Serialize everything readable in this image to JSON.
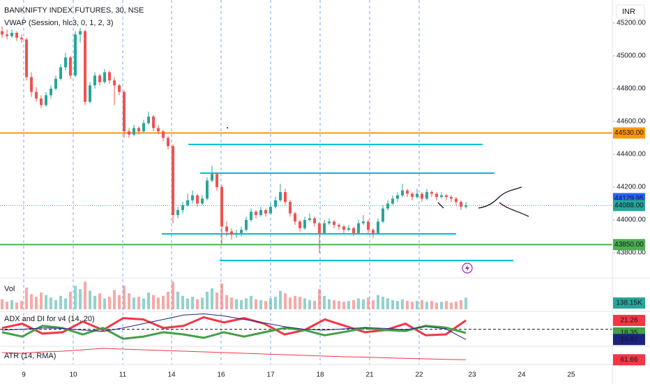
{
  "chart_data": {
    "type": "candlestick",
    "title": "BANKNIFTY INDEX FUTURES, 30, NSE",
    "indicator": "VWAP (Session, hlc3, 0, 1, 2, 3)",
    "currency": "INR",
    "up_color": "#26a69a",
    "down_color": "#ef5350",
    "ylim": [
      43660,
      45340
    ],
    "yticks": [
      {
        "value": 43800,
        "label": "43800.00"
      },
      {
        "value": 44000,
        "label": "44000.00"
      },
      {
        "value": 44200,
        "label": "44200.00"
      },
      {
        "value": 44400,
        "label": "44400.00"
      },
      {
        "value": 44600,
        "label": "44600.00"
      },
      {
        "value": 44800,
        "label": "44800.00"
      },
      {
        "value": 45000,
        "label": "45000.00"
      },
      {
        "value": 45200,
        "label": "45200.00"
      }
    ],
    "x_labels": [
      "9",
      "10",
      "11",
      "14",
      "16",
      "17",
      "18",
      "21",
      "22",
      "23",
      "24",
      "25"
    ],
    "ohlc": [
      [
        45150,
        45180,
        45110,
        45130
      ],
      [
        45130,
        45160,
        45100,
        45120
      ],
      [
        45120,
        45160,
        45110,
        45140
      ],
      [
        45140,
        45150,
        45090,
        45110
      ],
      [
        45110,
        45130,
        45080,
        45100
      ],
      [
        45100,
        45110,
        44850,
        44870
      ],
      [
        44870,
        44900,
        44750,
        44780
      ],
      [
        44780,
        44810,
        44720,
        44740
      ],
      [
        44740,
        44760,
        44680,
        44700
      ],
      [
        44700,
        44780,
        44690,
        44760
      ],
      [
        44760,
        44820,
        44740,
        44800
      ],
      [
        44800,
        44880,
        44790,
        44860
      ],
      [
        44860,
        44950,
        44850,
        44930
      ],
      [
        44930,
        45020,
        44910,
        44990
      ],
      [
        44990,
        45000,
        44860,
        44880
      ],
      [
        44880,
        45150,
        44870,
        45130
      ],
      [
        45130,
        45170,
        45080,
        45150
      ],
      [
        45150,
        45160,
        44700,
        44720
      ],
      [
        44720,
        44840,
        44710,
        44820
      ],
      [
        44820,
        44900,
        44800,
        44880
      ],
      [
        44880,
        44890,
        44820,
        44840
      ],
      [
        44840,
        44920,
        44830,
        44900
      ],
      [
        44900,
        44910,
        44830,
        44850
      ],
      [
        44850,
        44870,
        44700,
        44820
      ],
      [
        44820,
        44830,
        44760,
        44780
      ],
      [
        44780,
        44790,
        44500,
        44540
      ],
      [
        44540,
        44560,
        44500,
        44520
      ],
      [
        44520,
        44580,
        44510,
        44560
      ],
      [
        44560,
        44570,
        44520,
        44540
      ],
      [
        44540,
        44610,
        44530,
        44590
      ],
      [
        44590,
        44660,
        44580,
        44630
      ],
      [
        44630,
        44640,
        44540,
        44560
      ],
      [
        44560,
        44580,
        44520,
        44540
      ],
      [
        44540,
        44550,
        44480,
        44500
      ],
      [
        44500,
        44510,
        44430,
        44450
      ],
      [
        44450,
        44460,
        43980,
        44030
      ],
      [
        44030,
        44080,
        44010,
        44060
      ],
      [
        44060,
        44110,
        44040,
        44090
      ],
      [
        44090,
        44160,
        44080,
        44120
      ],
      [
        44120,
        44180,
        44100,
        44150
      ],
      [
        44150,
        44160,
        44080,
        44100
      ],
      [
        44100,
        44150,
        44090,
        44130
      ],
      [
        44130,
        44260,
        44120,
        44240
      ],
      [
        44240,
        44330,
        44230,
        44280
      ],
      [
        44280,
        44290,
        44180,
        44200
      ],
      [
        44200,
        44210,
        43850,
        43960
      ],
      [
        43960,
        43990,
        43900,
        43930
      ],
      [
        43930,
        43950,
        43880,
        43910
      ],
      [
        43910,
        43940,
        43890,
        43920
      ],
      [
        43920,
        43960,
        43900,
        43940
      ],
      [
        43940,
        44020,
        43930,
        44000
      ],
      [
        44000,
        44070,
        43990,
        44050
      ],
      [
        44050,
        44060,
        44010,
        44030
      ],
      [
        44030,
        44080,
        44020,
        44060
      ],
      [
        44060,
        44070,
        44020,
        44040
      ],
      [
        44040,
        44100,
        44030,
        44080
      ],
      [
        44080,
        44140,
        44070,
        44120
      ],
      [
        44120,
        44220,
        44110,
        44170
      ],
      [
        44170,
        44190,
        44090,
        44110
      ],
      [
        44110,
        44120,
        44020,
        44040
      ],
      [
        44040,
        44050,
        43970,
        43990
      ],
      [
        43990,
        44000,
        43930,
        43950
      ],
      [
        43950,
        44020,
        43940,
        44000
      ],
      [
        44000,
        44040,
        43990,
        44010
      ],
      [
        44010,
        44020,
        43960,
        43980
      ],
      [
        43980,
        43990,
        43800,
        43920
      ],
      [
        43920,
        44000,
        43910,
        43980
      ],
      [
        43980,
        44010,
        43970,
        43990
      ],
      [
        43990,
        44000,
        43950,
        43970
      ],
      [
        43970,
        43980,
        43940,
        43960
      ],
      [
        43960,
        43970,
        43920,
        43940
      ],
      [
        43940,
        43970,
        43930,
        43950
      ],
      [
        43950,
        43960,
        43900,
        43920
      ],
      [
        43920,
        44000,
        43910,
        43980
      ],
      [
        43980,
        44030,
        43970,
        43990
      ],
      [
        43990,
        44000,
        43920,
        43940
      ],
      [
        43940,
        43950,
        43890,
        43920
      ],
      [
        43920,
        44010,
        43910,
        43990
      ],
      [
        43990,
        44090,
        43980,
        44070
      ],
      [
        44070,
        44120,
        44060,
        44100
      ],
      [
        44100,
        44150,
        44090,
        44130
      ],
      [
        44130,
        44170,
        44110,
        44150
      ],
      [
        44150,
        44220,
        44140,
        44180
      ],
      [
        44180,
        44190,
        44140,
        44160
      ],
      [
        44160,
        44170,
        44120,
        44140
      ],
      [
        44140,
        44190,
        44130,
        44160
      ],
      [
        44160,
        44170,
        44110,
        44130
      ],
      [
        44130,
        44190,
        44120,
        44170
      ],
      [
        44170,
        44180,
        44140,
        44160
      ],
      [
        44160,
        44170,
        44120,
        44140
      ],
      [
        44140,
        44170,
        44130,
        44150
      ],
      [
        44150,
        44160,
        44120,
        44140
      ],
      [
        44140,
        44150,
        44110,
        44130
      ],
      [
        44130,
        44140,
        44090,
        44110
      ],
      [
        44110,
        44120,
        44060,
        44080
      ],
      [
        44080,
        44110,
        44070,
        44088
      ]
    ],
    "levels": [
      {
        "value": 44530,
        "color": "#ff9800",
        "label": "44530.00"
      },
      {
        "value": 43850,
        "color": "#4caf50",
        "label": "43850.00"
      }
    ],
    "cyan_lines": {
      "color": "#00bcd4",
      "values": [
        44460,
        44285,
        43915,
        43753
      ]
    },
    "vwap_label": {
      "value": 44129.95,
      "label": "44129.95",
      "color": "#2962ff"
    },
    "last_label": {
      "value": 44088,
      "label": "44088.00",
      "color": "#26a69a"
    },
    "volume": {
      "name": "Vol",
      "vlim": [
        0,
        350000
      ],
      "last_label": "138.15K",
      "values": [
        120000,
        90000,
        110000,
        80000,
        100000,
        260000,
        180000,
        150000,
        200000,
        170000,
        140000,
        110000,
        160000,
        130000,
        210000,
        280000,
        240000,
        330000,
        220000,
        160000,
        190000,
        130000,
        150000,
        230000,
        170000,
        280000,
        190000,
        140000,
        150000,
        130000,
        200000,
        170000,
        140000,
        160000,
        210000,
        330000,
        210000,
        160000,
        130000,
        150000,
        120000,
        140000,
        210000,
        250000,
        200000,
        310000,
        170000,
        140000,
        120000,
        110000,
        130000,
        160000,
        120000,
        110000,
        100000,
        130000,
        150000,
        220000,
        190000,
        140000,
        160000,
        150000,
        130000,
        110000,
        100000,
        240000,
        160000,
        120000,
        110000,
        100000,
        90000,
        100000,
        110000,
        130000,
        120000,
        140000,
        110000,
        170000,
        150000,
        130000,
        110000,
        100000,
        120000,
        100000,
        90000,
        100000,
        110000,
        90000,
        100000,
        80000,
        90000,
        100000,
        80000,
        90000,
        110000,
        138150
      ]
    },
    "adx": {
      "name": "ADX and DI for v4 (14, 20)",
      "ylim": [
        15.4,
        23.2
      ],
      "level": 19.2,
      "series": [
        {
          "color": "#f23645",
          "last_label": "21.26",
          "values": [
            19.5,
            20.5,
            18.2,
            18.5,
            21.0,
            19.0,
            21.8,
            21.5,
            19.5,
            20.0,
            22.0,
            20.8,
            21.8,
            20.5,
            18.0,
            19.0,
            21.5,
            20.0,
            18.5,
            19.0,
            20.5,
            17.8,
            18.0,
            21.26
          ]
        },
        {
          "color": "#43a047",
          "last_label": "18.35",
          "values": [
            18.5,
            17.5,
            20.0,
            19.5,
            18.0,
            19.5,
            17.0,
            17.5,
            18.5,
            18.0,
            17.2,
            18.5,
            17.5,
            18.5,
            19.5,
            19.0,
            17.8,
            18.6,
            19.5,
            19.0,
            18.8,
            20.0,
            19.6,
            18.35
          ]
        },
        {
          "color": "#1a237e",
          "last_label": "16.82",
          "values": [
            19.0,
            19.2,
            19.5,
            19.4,
            19.0,
            18.7,
            19.5,
            20.5,
            21.5,
            22.5,
            22.8,
            22.3,
            21.5,
            20.7,
            19.8,
            19.2,
            19.0,
            19.3,
            19.6,
            19.4,
            19.1,
            19.8,
            19.3,
            16.82
          ]
        }
      ]
    },
    "atr": {
      "name": "ATR (14, RMA)",
      "color": "#f23645",
      "ylim": [
        59,
        80
      ],
      "last_label": "61.66",
      "values": [
        72,
        71,
        73,
        74,
        76,
        78,
        77,
        76,
        75,
        74,
        73,
        72,
        71,
        70,
        69,
        68,
        67,
        66,
        65.5,
        64.5,
        63.8,
        63,
        62.3,
        61.66
      ]
    }
  }
}
